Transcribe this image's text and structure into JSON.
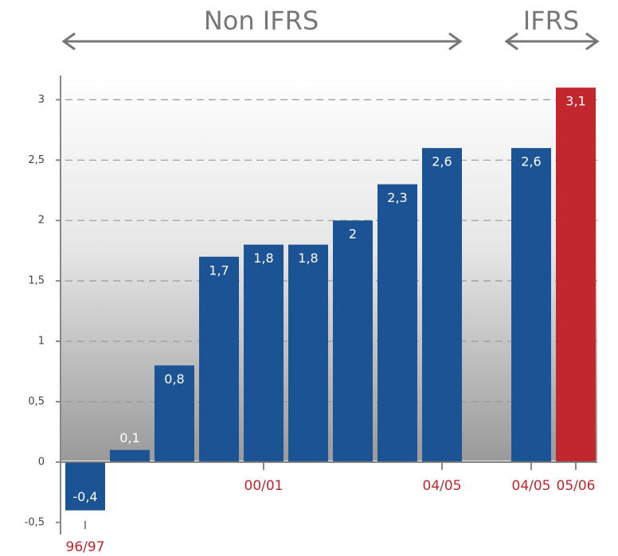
{
  "chart_data": {
    "type": "bar",
    "annotations": [
      "Non IFRS",
      "IFRS"
    ],
    "categories": [
      "96/97",
      null,
      null,
      null,
      "00/01",
      null,
      null,
      null,
      "04/05",
      "04/05",
      "05/06"
    ],
    "values": [
      -0.4,
      0.1,
      0.8,
      1.7,
      1.8,
      1.8,
      2,
      2.3,
      2.6,
      2.6,
      3.1
    ],
    "value_labels": [
      "-0,4",
      "0,1",
      "0,8",
      "1,7",
      "1,8",
      "1,8",
      "2",
      "2,3",
      "2,6",
      "2,6",
      "3,1"
    ],
    "colors": [
      "#1b5394",
      "#1b5394",
      "#1b5394",
      "#1b5394",
      "#1b5394",
      "#1b5394",
      "#1b5394",
      "#1b5394",
      "#1b5394",
      "#1b5394",
      "#c1272d"
    ],
    "ylim": [
      -0.6,
      3.2
    ],
    "yticks": [
      {
        "value": -0.5,
        "label": "-0,5"
      },
      0,
      {
        "value": 0.5,
        "label": "0,5"
      },
      1,
      {
        "value": 1.5,
        "label": "1,5"
      },
      2,
      {
        "value": 2.5,
        "label": "2,5"
      },
      3
    ],
    "grid": true
  }
}
